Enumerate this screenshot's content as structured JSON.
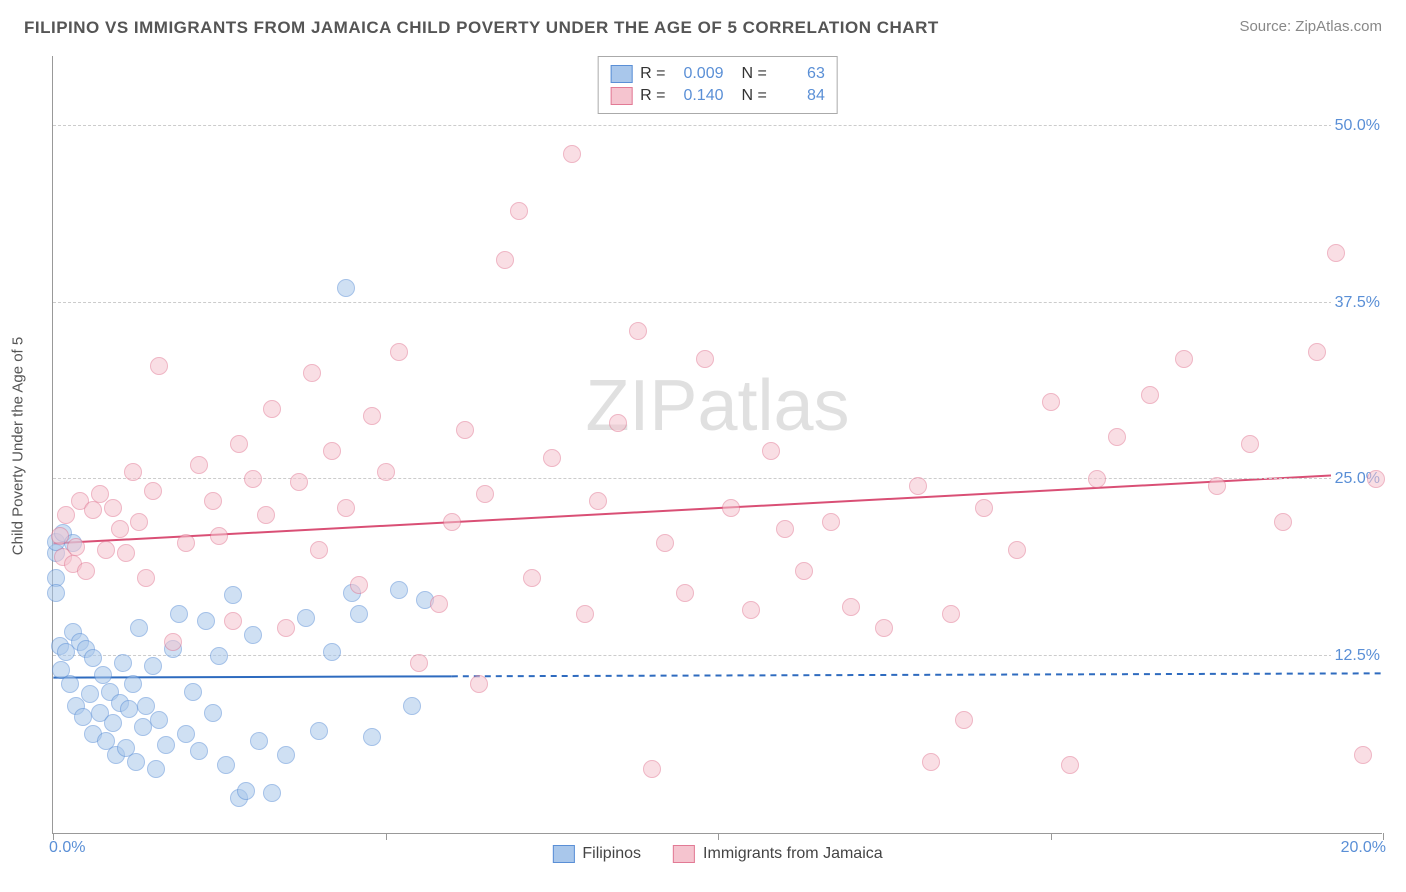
{
  "title": "FILIPINO VS IMMIGRANTS FROM JAMAICA CHILD POVERTY UNDER THE AGE OF 5 CORRELATION CHART",
  "source_label": "Source: ZipAtlas.com",
  "watermark": "ZIPatlas",
  "chart": {
    "type": "scatter",
    "ylabel": "Child Poverty Under the Age of 5",
    "xlim": [
      0,
      20
    ],
    "ylim": [
      0,
      55
    ],
    "xaxis_start_label": "0.0%",
    "xaxis_end_label": "20.0%",
    "xtick_positions": [
      0,
      5,
      10,
      15,
      20
    ],
    "ygrid": [
      12.5,
      25.0,
      37.5,
      50.0
    ],
    "ygrid_labels": [
      "12.5%",
      "25.0%",
      "37.5%",
      "50.0%"
    ],
    "background_color": "#ffffff",
    "grid_color": "#cccccc",
    "axis_color": "#999999",
    "tick_label_color": "#5a8fd6",
    "marker_radius": 9,
    "marker_opacity": 0.55,
    "series": [
      {
        "name": "Filipinos",
        "color_fill": "#a9c7eb",
        "color_stroke": "#5a8fd6",
        "R": "0.009",
        "N": "63",
        "trend": {
          "x1": 0,
          "y1": 11.0,
          "x2": 20,
          "y2": 11.3,
          "solid_until_x": 6.0,
          "color": "#2e6bbf",
          "width": 2
        },
        "points": [
          [
            0.05,
            19.8
          ],
          [
            0.05,
            20.6
          ],
          [
            0.05,
            18.0
          ],
          [
            0.05,
            17.0
          ],
          [
            0.1,
            13.2
          ],
          [
            0.12,
            11.5
          ],
          [
            0.15,
            21.2
          ],
          [
            0.2,
            12.8
          ],
          [
            0.25,
            10.5
          ],
          [
            0.3,
            14.2
          ],
          [
            0.3,
            20.5
          ],
          [
            0.35,
            9.0
          ],
          [
            0.4,
            13.5
          ],
          [
            0.45,
            8.2
          ],
          [
            0.5,
            13.0
          ],
          [
            0.55,
            9.8
          ],
          [
            0.6,
            12.4
          ],
          [
            0.6,
            7.0
          ],
          [
            0.7,
            8.5
          ],
          [
            0.75,
            11.2
          ],
          [
            0.8,
            6.5
          ],
          [
            0.85,
            10.0
          ],
          [
            0.9,
            7.8
          ],
          [
            0.95,
            5.5
          ],
          [
            1.0,
            9.2
          ],
          [
            1.05,
            12.0
          ],
          [
            1.1,
            6.0
          ],
          [
            1.15,
            8.8
          ],
          [
            1.2,
            10.5
          ],
          [
            1.25,
            5.0
          ],
          [
            1.3,
            14.5
          ],
          [
            1.35,
            7.5
          ],
          [
            1.4,
            9.0
          ],
          [
            1.5,
            11.8
          ],
          [
            1.55,
            4.5
          ],
          [
            1.6,
            8.0
          ],
          [
            1.7,
            6.2
          ],
          [
            1.8,
            13.0
          ],
          [
            1.9,
            15.5
          ],
          [
            2.0,
            7.0
          ],
          [
            2.1,
            10.0
          ],
          [
            2.2,
            5.8
          ],
          [
            2.3,
            15.0
          ],
          [
            2.4,
            8.5
          ],
          [
            2.5,
            12.5
          ],
          [
            2.6,
            4.8
          ],
          [
            2.7,
            16.8
          ],
          [
            2.8,
            2.5
          ],
          [
            2.9,
            3.0
          ],
          [
            3.0,
            14.0
          ],
          [
            3.1,
            6.5
          ],
          [
            3.3,
            2.8
          ],
          [
            3.5,
            5.5
          ],
          [
            3.8,
            15.2
          ],
          [
            4.0,
            7.2
          ],
          [
            4.2,
            12.8
          ],
          [
            4.4,
            38.5
          ],
          [
            4.5,
            17.0
          ],
          [
            4.6,
            15.5
          ],
          [
            4.8,
            6.8
          ],
          [
            5.2,
            17.2
          ],
          [
            5.4,
            9.0
          ],
          [
            5.6,
            16.5
          ]
        ]
      },
      {
        "name": "Immigrants from Jamaica",
        "color_fill": "#f5c4cf",
        "color_stroke": "#e27a95",
        "R": "0.140",
        "N": "84",
        "trend": {
          "x1": 0,
          "y1": 20.5,
          "x2": 20,
          "y2": 25.5,
          "solid_until_x": 20,
          "color": "#d94f75",
          "width": 2
        },
        "points": [
          [
            0.1,
            21.0
          ],
          [
            0.15,
            19.5
          ],
          [
            0.2,
            22.5
          ],
          [
            0.3,
            19.0
          ],
          [
            0.35,
            20.2
          ],
          [
            0.4,
            23.5
          ],
          [
            0.5,
            18.5
          ],
          [
            0.6,
            22.8
          ],
          [
            0.7,
            24.0
          ],
          [
            0.8,
            20.0
          ],
          [
            0.9,
            23.0
          ],
          [
            1.0,
            21.5
          ],
          [
            1.1,
            19.8
          ],
          [
            1.2,
            25.5
          ],
          [
            1.3,
            22.0
          ],
          [
            1.4,
            18.0
          ],
          [
            1.5,
            24.2
          ],
          [
            1.6,
            33.0
          ],
          [
            1.8,
            13.5
          ],
          [
            2.0,
            20.5
          ],
          [
            2.2,
            26.0
          ],
          [
            2.4,
            23.5
          ],
          [
            2.5,
            21.0
          ],
          [
            2.7,
            15.0
          ],
          [
            2.8,
            27.5
          ],
          [
            3.0,
            25.0
          ],
          [
            3.2,
            22.5
          ],
          [
            3.3,
            30.0
          ],
          [
            3.5,
            14.5
          ],
          [
            3.7,
            24.8
          ],
          [
            3.9,
            32.5
          ],
          [
            4.0,
            20.0
          ],
          [
            4.2,
            27.0
          ],
          [
            4.4,
            23.0
          ],
          [
            4.6,
            17.5
          ],
          [
            4.8,
            29.5
          ],
          [
            5.0,
            25.5
          ],
          [
            5.2,
            34.0
          ],
          [
            5.5,
            12.0
          ],
          [
            5.8,
            16.2
          ],
          [
            6.0,
            22.0
          ],
          [
            6.2,
            28.5
          ],
          [
            6.4,
            10.5
          ],
          [
            6.5,
            24.0
          ],
          [
            6.8,
            40.5
          ],
          [
            7.0,
            44.0
          ],
          [
            7.2,
            18.0
          ],
          [
            7.5,
            26.5
          ],
          [
            7.8,
            48.0
          ],
          [
            8.0,
            15.5
          ],
          [
            8.2,
            23.5
          ],
          [
            8.5,
            29.0
          ],
          [
            8.8,
            35.5
          ],
          [
            9.0,
            4.5
          ],
          [
            9.2,
            20.5
          ],
          [
            9.5,
            17.0
          ],
          [
            9.8,
            33.5
          ],
          [
            10.2,
            23.0
          ],
          [
            10.5,
            15.8
          ],
          [
            10.8,
            27.0
          ],
          [
            11.0,
            21.5
          ],
          [
            11.3,
            18.5
          ],
          [
            11.7,
            22.0
          ],
          [
            12.0,
            16.0
          ],
          [
            12.5,
            14.5
          ],
          [
            13.0,
            24.5
          ],
          [
            13.2,
            5.0
          ],
          [
            13.5,
            15.5
          ],
          [
            13.7,
            8.0
          ],
          [
            14.0,
            23.0
          ],
          [
            14.5,
            20.0
          ],
          [
            15.0,
            30.5
          ],
          [
            15.3,
            4.8
          ],
          [
            15.7,
            25.0
          ],
          [
            16.0,
            28.0
          ],
          [
            16.5,
            31.0
          ],
          [
            17.0,
            33.5
          ],
          [
            17.5,
            24.5
          ],
          [
            18.0,
            27.5
          ],
          [
            18.5,
            22.0
          ],
          [
            19.0,
            34.0
          ],
          [
            19.3,
            41.0
          ],
          [
            19.7,
            5.5
          ],
          [
            19.9,
            25.0
          ]
        ]
      }
    ]
  },
  "legend_bottom": [
    {
      "label": "Filipinos",
      "fill": "#a9c7eb",
      "stroke": "#5a8fd6"
    },
    {
      "label": "Immigrants from Jamaica",
      "fill": "#f5c4cf",
      "stroke": "#e27a95"
    }
  ]
}
